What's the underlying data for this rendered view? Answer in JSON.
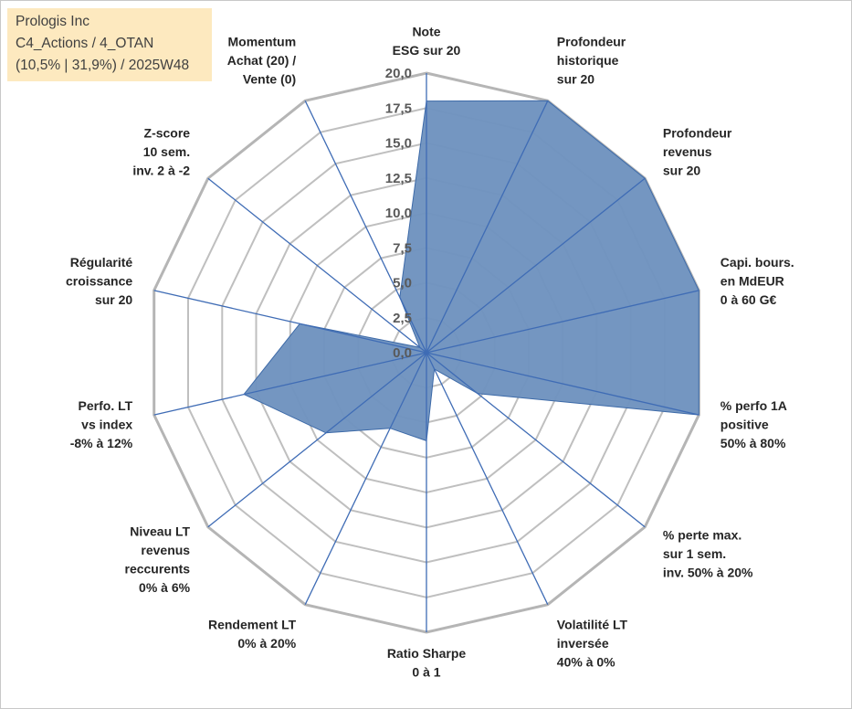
{
  "info": {
    "line1": "Prologis Inc",
    "line2": "C4_Actions / 4_OTAN",
    "line3": "(10,5% | 31,9%) / 2025W48"
  },
  "colors": {
    "fill": "#6f93bf",
    "series_line": "#3d6aa8",
    "spoke": "#3f6cb5",
    "grid": "#bfbfbf",
    "outer_grid": "#b5b5b5"
  },
  "chart_data": {
    "type": "radar",
    "title": "",
    "rmax": 20,
    "tick_values": [
      0,
      2.5,
      5,
      7.5,
      10,
      12.5,
      15,
      17.5,
      20
    ],
    "tick_labels": [
      "0,0",
      "2,5",
      "5,0",
      "7,5",
      "10,0",
      "12,5",
      "15,0",
      "17,5",
      "20,0"
    ],
    "grid": true,
    "categories": [
      [
        "Note",
        "ESG sur 20"
      ],
      [
        "Profondeur",
        "historique",
        "sur 20"
      ],
      [
        "Profondeur",
        "revenus",
        "sur 20"
      ],
      [
        "Capi. bours.",
        "en MdEUR",
        "0 à 60 G€"
      ],
      [
        "% perfo 1A",
        "positive",
        "50% à 80%"
      ],
      [
        "% perte max.",
        "sur 1 sem.",
        "inv. 50% à 20%"
      ],
      [
        "Volatilité LT",
        "inversée",
        "40% à 0%"
      ],
      [
        "Ratio Sharpe",
        "0 à 1"
      ],
      [
        "Rendement LT",
        "0% à 20%"
      ],
      [
        "Niveau LT",
        "revenus",
        "reccurents",
        "0% à 6%"
      ],
      [
        "Perfo. LT",
        "vs index",
        "-8% à 12%"
      ],
      [
        "Régularité",
        "croissance",
        "sur 20"
      ],
      [
        "Z-score",
        "10 sem.",
        "inv. 2 à -2"
      ],
      [
        "Momentum",
        "Achat (20) /",
        "Vente (0)"
      ]
    ],
    "series": [
      {
        "values": [
          18,
          20,
          20,
          20,
          20,
          4.7,
          1.3,
          6.3,
          6.0,
          9.2,
          13.4,
          9.3,
          0.6,
          4.4
        ]
      }
    ]
  }
}
